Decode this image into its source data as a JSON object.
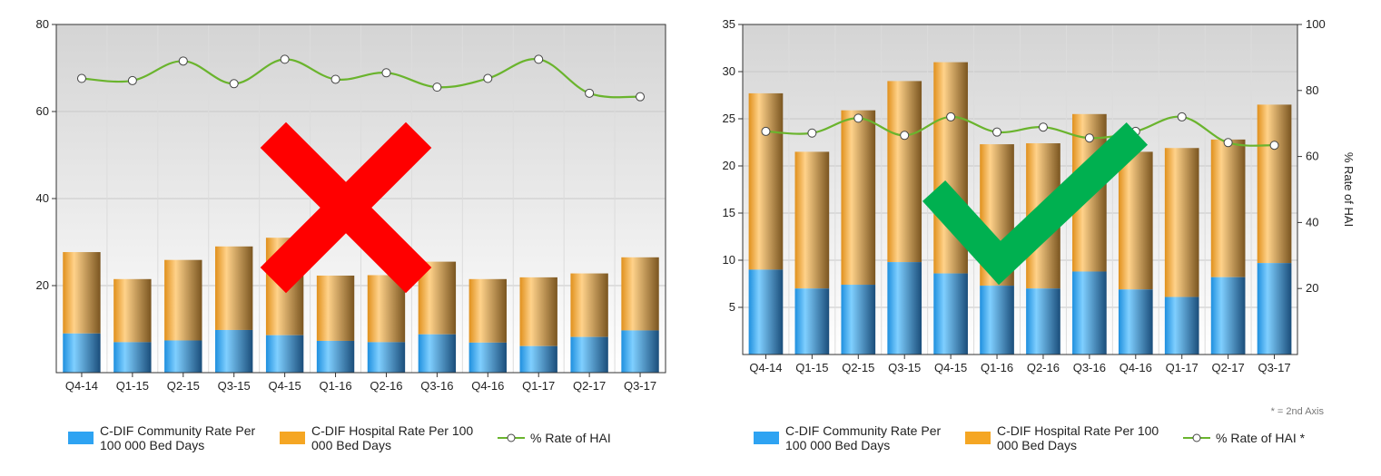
{
  "chart_data": [
    {
      "type": "bar",
      "stacked": true,
      "categories": [
        "Q4-14",
        "Q1-15",
        "Q2-15",
        "Q3-15",
        "Q4-15",
        "Q1-16",
        "Q2-16",
        "Q3-16",
        "Q4-16",
        "Q1-17",
        "Q2-17",
        "Q3-17"
      ],
      "series": [
        {
          "name": "C-DIF Community Rate Per 100 000 Bed Days",
          "kind": "bar",
          "color": "#2ea3f2",
          "values": [
            9.0,
            7.0,
            7.4,
            9.8,
            8.6,
            7.3,
            7.0,
            8.8,
            6.9,
            6.1,
            8.2,
            9.7
          ]
        },
        {
          "name": "C-DIF Hospital Rate Per 100 000 Bed Days",
          "kind": "bar",
          "color": "#f5a623",
          "values": [
            18.7,
            14.5,
            18.5,
            19.2,
            22.4,
            15.0,
            15.4,
            16.7,
            14.6,
            15.8,
            14.6,
            16.8
          ]
        },
        {
          "name": "% Rate of HAI",
          "kind": "line",
          "axis": "y",
          "color": "#6ab42d",
          "values": [
            67.6,
            67.1,
            71.6,
            66.4,
            72.0,
            67.4,
            68.9,
            65.6,
            67.6,
            72.0,
            64.2,
            63.4
          ]
        }
      ],
      "ylim": [
        0,
        80
      ],
      "yticks": [
        "20",
        "40",
        "60",
        "80"
      ],
      "legend_position": "bottom",
      "overlay_mark": "cross",
      "overlay_color": "#ff0000"
    },
    {
      "type": "bar",
      "stacked": true,
      "categories": [
        "Q4-14",
        "Q1-15",
        "Q2-15",
        "Q3-15",
        "Q4-15",
        "Q1-16",
        "Q2-16",
        "Q3-16",
        "Q4-16",
        "Q1-17",
        "Q2-17",
        "Q3-17"
      ],
      "series": [
        {
          "name": "C-DIF Community Rate Per 100 000 Bed Days",
          "kind": "bar",
          "color": "#2ea3f2",
          "values": [
            9.0,
            7.0,
            7.4,
            9.8,
            8.6,
            7.3,
            7.0,
            8.8,
            6.9,
            6.1,
            8.2,
            9.7
          ]
        },
        {
          "name": "C-DIF Hospital Rate Per 100 000 Bed Days",
          "kind": "bar",
          "color": "#f5a623",
          "values": [
            18.7,
            14.5,
            18.5,
            19.2,
            22.4,
            15.0,
            15.4,
            16.7,
            14.6,
            15.8,
            14.6,
            16.8
          ]
        },
        {
          "name": "% Rate of HAI *",
          "kind": "line",
          "axis": "y2",
          "color": "#6ab42d",
          "values": [
            67.6,
            67.1,
            71.6,
            66.4,
            72.0,
            67.4,
            68.9,
            65.6,
            67.6,
            72.0,
            64.2,
            63.4
          ]
        }
      ],
      "ylim": [
        0,
        35
      ],
      "yticks": [
        "5",
        "10",
        "15",
        "20",
        "25",
        "30",
        "35"
      ],
      "y2lim": [
        0,
        100
      ],
      "y2ticks": [
        "20",
        "40",
        "60",
        "80",
        "100"
      ],
      "y2label": "% Rate of HAI",
      "note": "* = 2nd Axis",
      "legend_position": "bottom",
      "overlay_mark": "check",
      "overlay_color": "#00b050"
    }
  ]
}
